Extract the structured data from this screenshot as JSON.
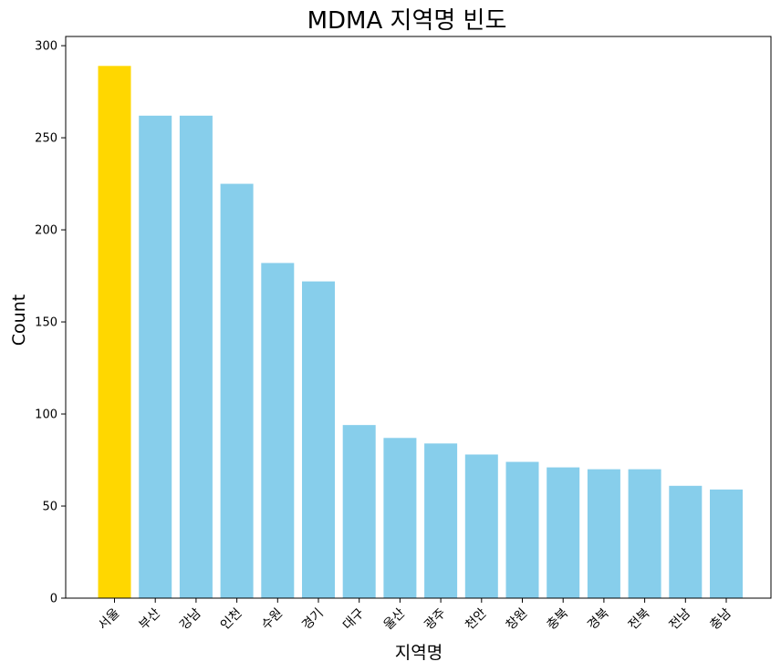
{
  "chart_data": {
    "type": "bar",
    "title": "MDMA 지역명 빈도",
    "xlabel": "지역명",
    "ylabel": "Count",
    "categories": [
      "서울",
      "부산",
      "강남",
      "인천",
      "수원",
      "경기",
      "대구",
      "울산",
      "광주",
      "천안",
      "창원",
      "충북",
      "경북",
      "전북",
      "전남",
      "충남"
    ],
    "values": [
      289,
      262,
      262,
      225,
      182,
      172,
      94,
      87,
      84,
      78,
      74,
      71,
      70,
      70,
      61,
      59
    ],
    "ylim": [
      0,
      305
    ],
    "yticks": [
      0,
      50,
      100,
      150,
      200,
      250,
      300
    ],
    "grid": false,
    "colors": {
      "default": "#87CEEB",
      "highlight": "#FFD700",
      "highlight_index": 0
    }
  }
}
